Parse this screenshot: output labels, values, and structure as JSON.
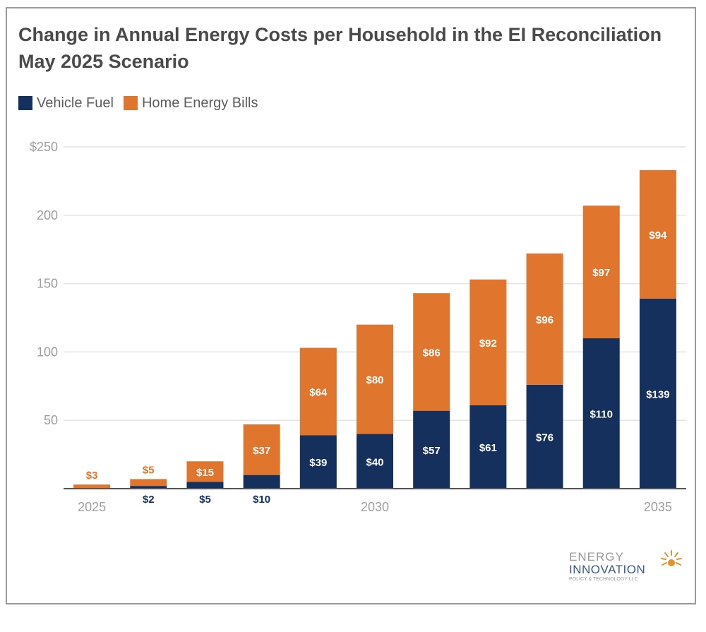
{
  "colors": {
    "vehicle": "#15305c",
    "home": "#e0752d",
    "grid": "#e4e4e4",
    "axis": "#555555",
    "vehicle_label": "#15305c",
    "home_label": "#e0752d",
    "inside_label": "#ffffff"
  },
  "logo": {
    "line1": "ENERGY",
    "line2": "INNOVATION",
    "line3": "POLICY & TECHNOLOGY LLC"
  },
  "chart_data": {
    "type": "bar",
    "stacked": true,
    "title": "Change in Annual Energy Costs per Household in the EI Reconciliation May 2025 Scenario",
    "legend": [
      "Vehicle Fuel",
      "Home Energy Bills"
    ],
    "legend_position": "top-left",
    "categories": [
      "2025",
      "2026",
      "2027",
      "2028",
      "2029",
      "2030",
      "2031",
      "2032",
      "2033",
      "2034",
      "2035"
    ],
    "x_tick_labels": [
      "2025",
      "",
      "",
      "",
      "",
      "2030",
      "",
      "",
      "",
      "",
      "2035"
    ],
    "series": [
      {
        "name": "Vehicle Fuel",
        "values": [
          0,
          2,
          5,
          10,
          39,
          40,
          57,
          61,
          76,
          110,
          139
        ],
        "labels": [
          "",
          "$2",
          "$5",
          "$10",
          "$39",
          "$40",
          "$57",
          "$61",
          "$76",
          "$110",
          "$139"
        ]
      },
      {
        "name": "Home Energy Bills",
        "values": [
          3,
          5,
          15,
          37,
          64,
          80,
          86,
          92,
          96,
          97,
          94
        ],
        "labels": [
          "$3",
          "$5",
          "$15",
          "$37",
          "$64",
          "$80",
          "$86",
          "$92",
          "$96",
          "$97",
          "$94"
        ]
      }
    ],
    "ylim": [
      0,
      250
    ],
    "yticks": [
      0,
      50,
      100,
      150,
      200,
      250
    ],
    "ytick_labels": [
      "",
      "50",
      "100",
      "150",
      "200",
      "$250"
    ],
    "grid": true,
    "xlabel": "",
    "ylabel": ""
  }
}
